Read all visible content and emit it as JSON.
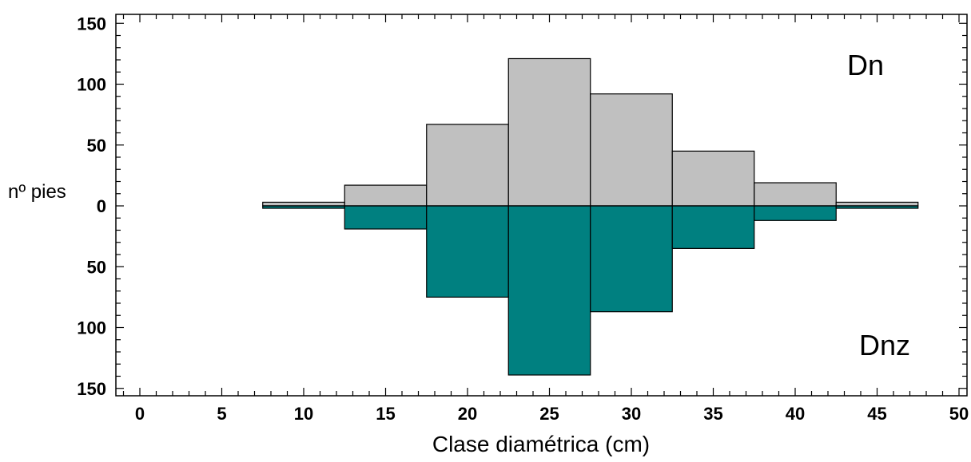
{
  "chart_data": {
    "type": "bar",
    "xlabel": "Clase diamétrica (cm)",
    "ylabel": "nº pies",
    "xlim": [
      -2,
      51
    ],
    "ylim": [
      -155,
      155
    ],
    "x_ticks": [
      0,
      5,
      10,
      15,
      20,
      25,
      30,
      35,
      40,
      45,
      50
    ],
    "y_ticks": [
      {
        "value": 150,
        "label": "150"
      },
      {
        "value": 100,
        "label": "100"
      },
      {
        "value": 50,
        "label": "50"
      },
      {
        "value": 0,
        "label": "0"
      },
      {
        "value": -50,
        "label": "50"
      },
      {
        "value": -100,
        "label": "100"
      },
      {
        "value": -150,
        "label": "150"
      }
    ],
    "bin_width": 5,
    "categories": [
      10,
      15,
      20,
      25,
      30,
      35,
      40,
      45
    ],
    "series": [
      {
        "name": "Dn",
        "direction": "up",
        "color": "#c0c0c0",
        "values": [
          3,
          17,
          67,
          121,
          92,
          45,
          19,
          3
        ]
      },
      {
        "name": "Dnz",
        "direction": "down",
        "color": "#008080",
        "values": [
          2,
          19,
          75,
          139,
          87,
          35,
          12,
          2
        ]
      }
    ],
    "grid": false
  }
}
